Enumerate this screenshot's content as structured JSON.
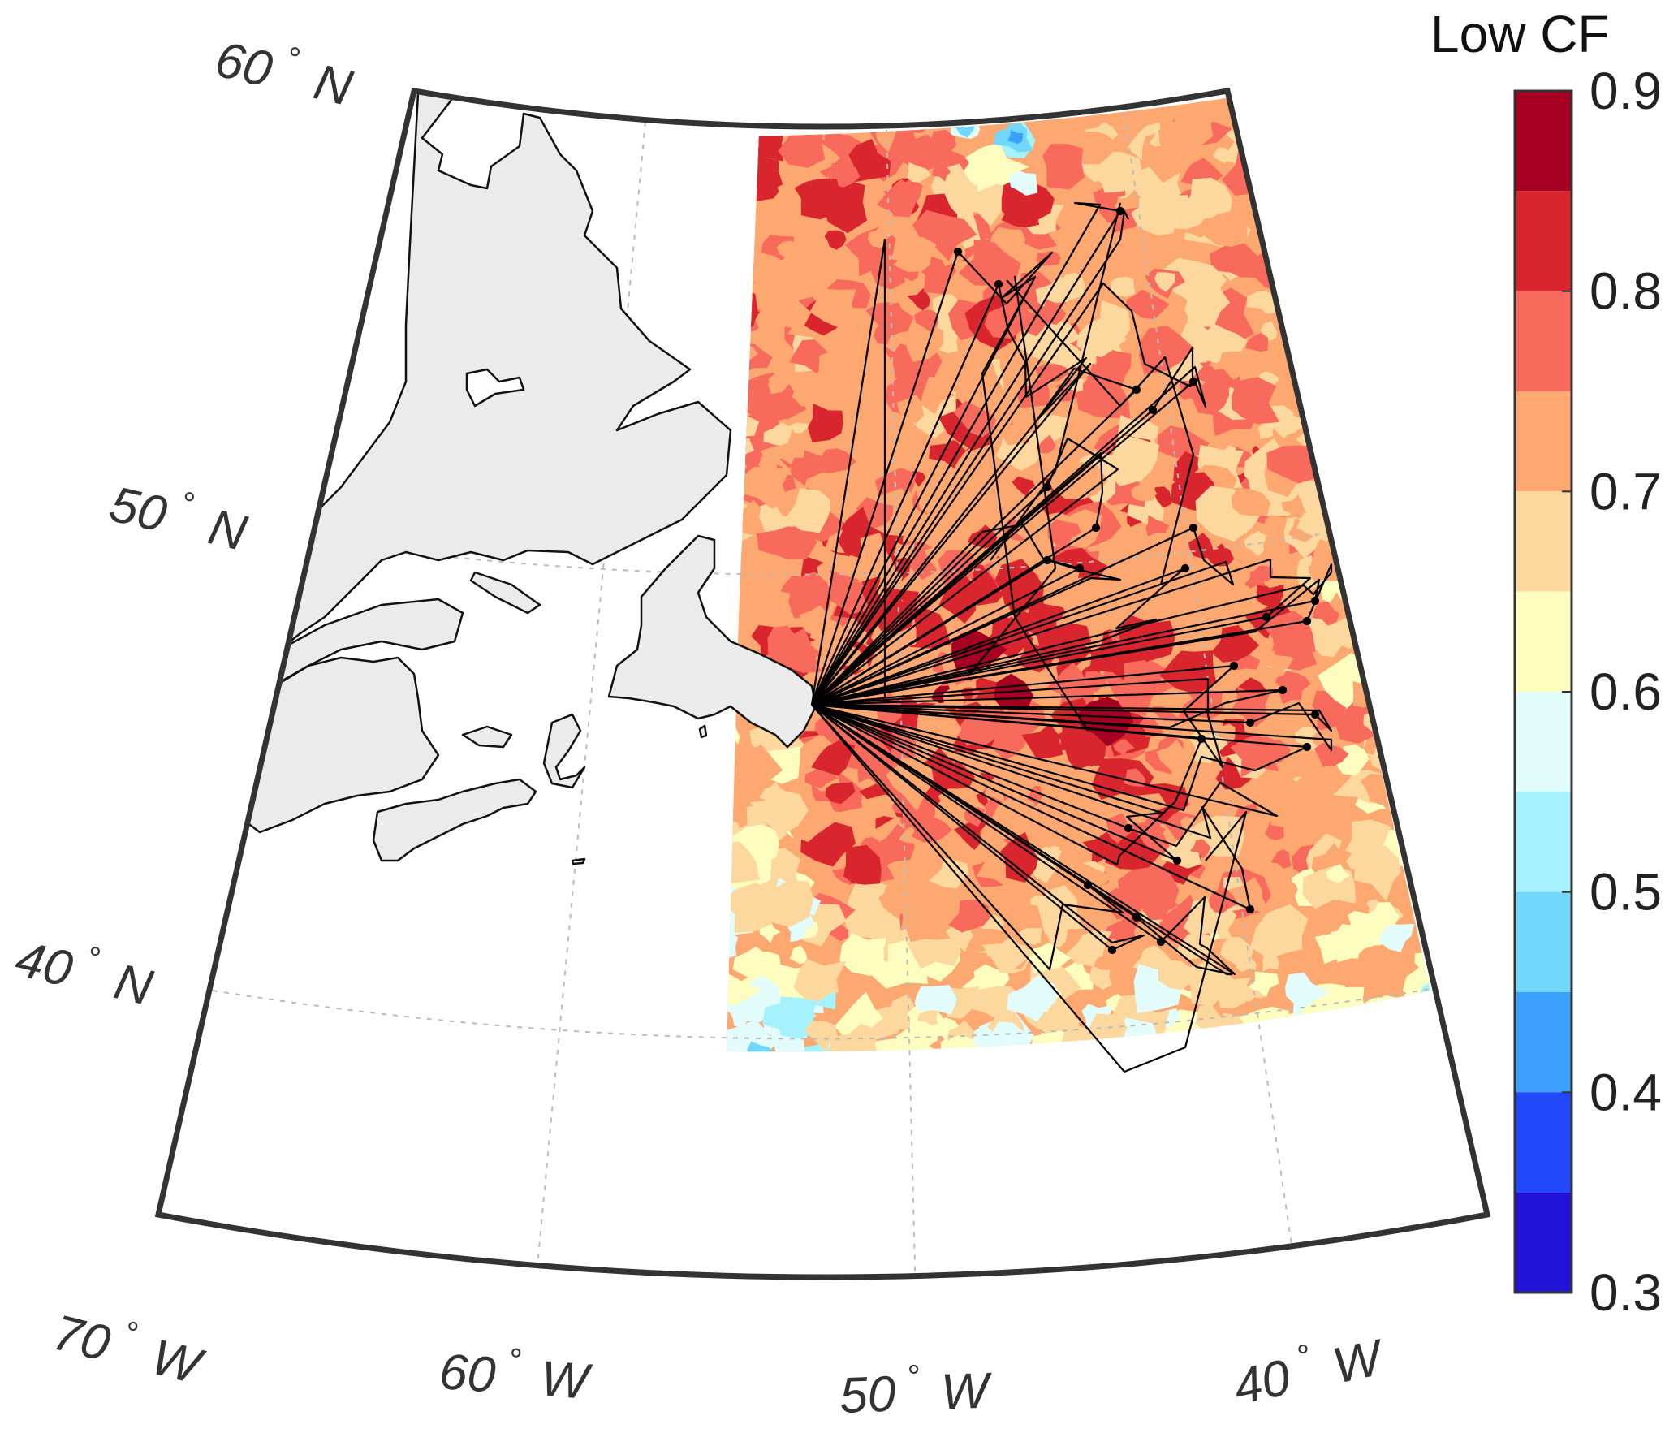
{
  "colorbar": {
    "title": "Low CF",
    "ticks": [
      "0.9",
      "0.8",
      "0.7",
      "0.6",
      "0.5",
      "0.4",
      "0.3"
    ],
    "range": [
      0.3,
      0.9
    ],
    "bins": [
      {
        "from": 0.85,
        "to": 0.9,
        "color": "#a50021"
      },
      {
        "from": 0.8,
        "to": 0.85,
        "color": "#d9262e"
      },
      {
        "from": 0.75,
        "to": 0.8,
        "color": "#f86b5c"
      },
      {
        "from": 0.7,
        "to": 0.75,
        "color": "#fca870"
      },
      {
        "from": 0.65,
        "to": 0.7,
        "color": "#fdd89e"
      },
      {
        "from": 0.6,
        "to": 0.65,
        "color": "#fefdc0"
      },
      {
        "from": 0.55,
        "to": 0.6,
        "color": "#e2fbfb"
      },
      {
        "from": 0.5,
        "to": 0.55,
        "color": "#a5f2fc"
      },
      {
        "from": 0.45,
        "to": 0.5,
        "color": "#71d7fc"
      },
      {
        "from": 0.4,
        "to": 0.45,
        "color": "#3c9ffb"
      },
      {
        "from": 0.35,
        "to": 0.4,
        "color": "#2248fc"
      },
      {
        "from": 0.3,
        "to": 0.35,
        "color": "#2114d6"
      }
    ]
  },
  "latitude_labels": [
    {
      "deg": "60",
      "hemi": "N"
    },
    {
      "deg": "50",
      "hemi": "N"
    },
    {
      "deg": "40",
      "hemi": "N"
    }
  ],
  "longitude_labels": [
    {
      "deg": "70",
      "hemi": "W"
    },
    {
      "deg": "60",
      "hemi": "W"
    },
    {
      "deg": "50",
      "hemi": "W"
    },
    {
      "deg": "40",
      "hemi": "W"
    }
  ],
  "degree_symbol": "°",
  "colors": {
    "land": "#ebebeb",
    "coast": "#111111",
    "frame": "#333333",
    "grid": "#bbbbbb",
    "tracks": "#000000"
  }
}
